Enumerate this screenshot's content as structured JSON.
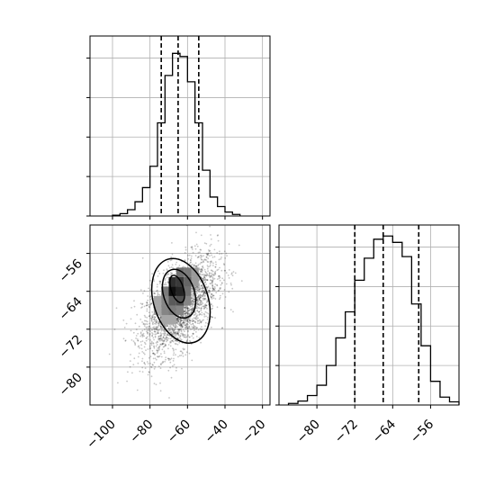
{
  "chart_data": [
    {
      "type": "histogram",
      "panel": "top-left marginal",
      "xlim": [
        -112,
        -16
      ],
      "bins": [
        {
          "x0": -100,
          "x1": -96,
          "y": 1
        },
        {
          "x0": -96,
          "x1": -92,
          "y": 3
        },
        {
          "x0": -92,
          "x1": -88,
          "y": 8
        },
        {
          "x0": -88,
          "x1": -84,
          "y": 18
        },
        {
          "x0": -84,
          "x1": -80,
          "y": 36
        },
        {
          "x0": -80,
          "x1": -76,
          "y": 63
        },
        {
          "x0": -76,
          "x1": -72,
          "y": 118
        },
        {
          "x0": -72,
          "x1": -68,
          "y": 178
        },
        {
          "x0": -68,
          "x1": -64,
          "y": 206
        },
        {
          "x0": -64,
          "x1": -60,
          "y": 202
        },
        {
          "x0": -60,
          "x1": -56,
          "y": 170
        },
        {
          "x0": -56,
          "x1": -52,
          "y": 118
        },
        {
          "x0": -52,
          "x1": -48,
          "y": 58
        },
        {
          "x0": -48,
          "x1": -44,
          "y": 24
        },
        {
          "x0": -44,
          "x1": -40,
          "y": 12
        },
        {
          "x0": -40,
          "x1": -36,
          "y": 5
        },
        {
          "x0": -36,
          "x1": -32,
          "y": 2
        }
      ],
      "ylim": [
        0,
        228
      ],
      "yticks": [
        0,
        50,
        100,
        150,
        200
      ],
      "quantiles": [
        -74,
        -65,
        -54
      ],
      "grid": true
    },
    {
      "type": "scatter",
      "panel": "bottom-left joint",
      "xlim": [
        -112,
        -16
      ],
      "ylim": [
        -88,
        -50
      ],
      "xticks": [
        "−100",
        "−80",
        "−60",
        "−40",
        "−20"
      ],
      "xtick_values": [
        -100,
        -80,
        -60,
        -40,
        -20
      ],
      "yticks": [
        "−56",
        "−64",
        "−72",
        "−80"
      ],
      "ytick_values": [
        -56,
        -64,
        -72,
        -80
      ],
      "center": [
        -64,
        -67
      ],
      "spread": [
        10,
        5.3
      ],
      "correlation": 0.55,
      "density_cells": [
        {
          "x": -68,
          "y": -64,
          "level": 1.0
        },
        {
          "x": -64,
          "y": -64,
          "level": 0.9
        },
        {
          "x": -68,
          "y": -62,
          "level": 0.85
        },
        {
          "x": -64,
          "y": -62,
          "level": 0.8
        },
        {
          "x": -64,
          "y": -66,
          "level": 0.7
        },
        {
          "x": -68,
          "y": -66,
          "level": 0.65
        },
        {
          "x": -60,
          "y": -62,
          "level": 0.6
        },
        {
          "x": -60,
          "y": -64,
          "level": 0.55
        },
        {
          "x": -72,
          "y": -64,
          "level": 0.5
        },
        {
          "x": -64,
          "y": -60,
          "level": 0.55
        },
        {
          "x": -60,
          "y": -60,
          "level": 0.5
        },
        {
          "x": -68,
          "y": -68,
          "level": 0.5
        },
        {
          "x": -72,
          "y": -68,
          "level": 0.45
        },
        {
          "x": -64,
          "y": -68,
          "level": 0.45
        },
        {
          "x": -72,
          "y": -66,
          "level": 0.45
        },
        {
          "x": -60,
          "y": -66,
          "level": 0.45
        },
        {
          "x": -56,
          "y": -62,
          "level": 0.35
        },
        {
          "x": -56,
          "y": -60,
          "level": 0.35
        },
        {
          "x": -76,
          "y": -66,
          "level": 0.3
        },
        {
          "x": -76,
          "y": -68,
          "level": 0.3
        },
        {
          "x": -72,
          "y": -70,
          "level": 0.3
        },
        {
          "x": -68,
          "y": -70,
          "level": 0.3
        }
      ],
      "contours": [
        {
          "level": "inner",
          "cx": -65.5,
          "cy": -63.5,
          "rx": 3.3,
          "ry": 3.0
        },
        {
          "level": "middle",
          "cx": -64.5,
          "cy": -64.5,
          "rx": 8.3,
          "ry": 5.3
        },
        {
          "level": "outer",
          "cx": -63.5,
          "cy": -66.0,
          "rx": 14.5,
          "ry": 9.2
        }
      ],
      "grid": true
    },
    {
      "type": "histogram",
      "panel": "bottom-right marginal",
      "xlim": [
        -88,
        -50
      ],
      "xticks": [
        "−80",
        "−72",
        "−64",
        "−56"
      ],
      "xtick_values": [
        -80,
        -72,
        -64,
        -56
      ],
      "bins": [
        {
          "x0": -86,
          "x1": -84,
          "y": 2
        },
        {
          "x0": -84,
          "x1": -82,
          "y": 5
        },
        {
          "x0": -82,
          "x1": -80,
          "y": 12
        },
        {
          "x0": -80,
          "x1": -78,
          "y": 25
        },
        {
          "x0": -78,
          "x1": -76,
          "y": 50
        },
        {
          "x0": -76,
          "x1": -74,
          "y": 85
        },
        {
          "x0": -74,
          "x1": -72,
          "y": 118
        },
        {
          "x0": -72,
          "x1": -70,
          "y": 158
        },
        {
          "x0": -70,
          "x1": -68,
          "y": 186
        },
        {
          "x0": -68,
          "x1": -66,
          "y": 210
        },
        {
          "x0": -66,
          "x1": -64,
          "y": 214
        },
        {
          "x0": -64,
          "x1": -62,
          "y": 206
        },
        {
          "x0": -62,
          "x1": -60,
          "y": 188
        },
        {
          "x0": -60,
          "x1": -58,
          "y": 128
        },
        {
          "x0": -58,
          "x1": -56,
          "y": 75
        },
        {
          "x0": -56,
          "x1": -54,
          "y": 30
        },
        {
          "x0": -54,
          "x1": -52,
          "y": 10
        },
        {
          "x0": -52,
          "x1": -50,
          "y": 4
        }
      ],
      "ylim": [
        0,
        228
      ],
      "yticks": [
        0,
        50,
        100,
        150,
        200
      ],
      "quantiles": [
        -72,
        -66,
        -58.5
      ],
      "grid": true
    }
  ]
}
